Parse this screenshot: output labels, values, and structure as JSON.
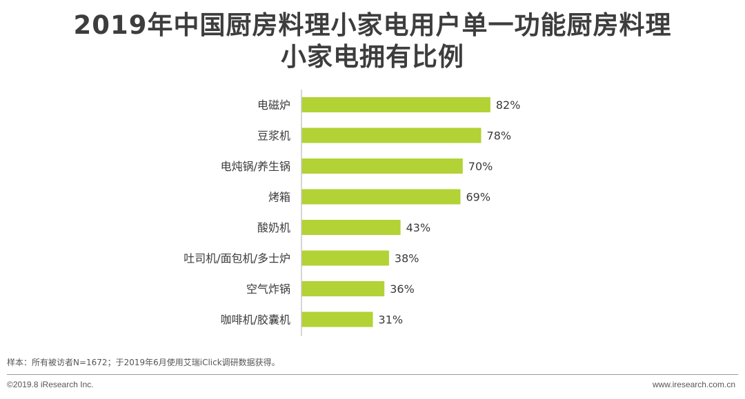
{
  "title": {
    "line1": "2019年中国厨房料理小家电用户单一功能厨房料理",
    "line2": "小家电拥有比例"
  },
  "chart_data": {
    "type": "bar",
    "orientation": "horizontal",
    "categories": [
      "电磁炉",
      "豆浆机",
      "电炖锅/养生锅",
      "烤箱",
      "酸奶机",
      "吐司机/面包机/多士炉",
      "空气炸锅",
      "咖啡机/胶囊机"
    ],
    "values": [
      82,
      78,
      70,
      69,
      43,
      38,
      36,
      31
    ],
    "value_labels": [
      "82%",
      "78%",
      "70%",
      "69%",
      "43%",
      "38%",
      "36%",
      "31%"
    ],
    "unit": "%",
    "xlim": [
      0,
      100
    ],
    "bar_color": "#b2d235",
    "axis_color": "#c8c8c8",
    "grid": false,
    "legend": "none"
  },
  "footnote": "样本：所有被访者N=1672；于2019年6月使用艾瑞iClick调研数据获得。",
  "copyright": "©2019.8 iResearch Inc.",
  "website": "www.iresearch.com.cn"
}
